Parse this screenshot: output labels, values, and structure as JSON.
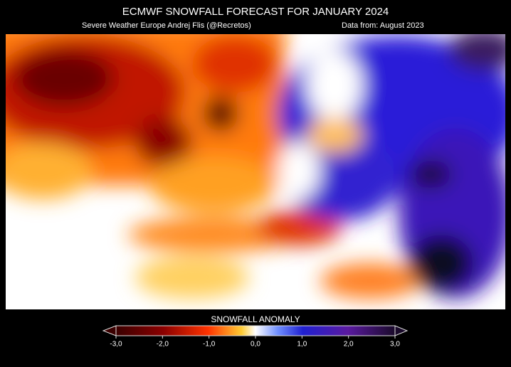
{
  "header": {
    "title": "ECMWF SNOWFALL FORECAST FOR  JANUARY 2024",
    "credit": "Severe Weather Europe   Andrej Flis (@Recretos)",
    "source": "Data from: August 2023"
  },
  "colorbar": {
    "title": "SNOWFALL ANOMALY",
    "range": [
      -3,
      3
    ],
    "ticks": [
      {
        "value": -3,
        "label": "-3,0"
      },
      {
        "value": -2,
        "label": "-2,0"
      },
      {
        "value": -1,
        "label": "-1,0"
      },
      {
        "value": 0,
        "label": "0,0"
      },
      {
        "value": 1,
        "label": "1,0"
      },
      {
        "value": 2,
        "label": "2,0"
      },
      {
        "value": 3,
        "label": "3,0"
      }
    ]
  }
}
